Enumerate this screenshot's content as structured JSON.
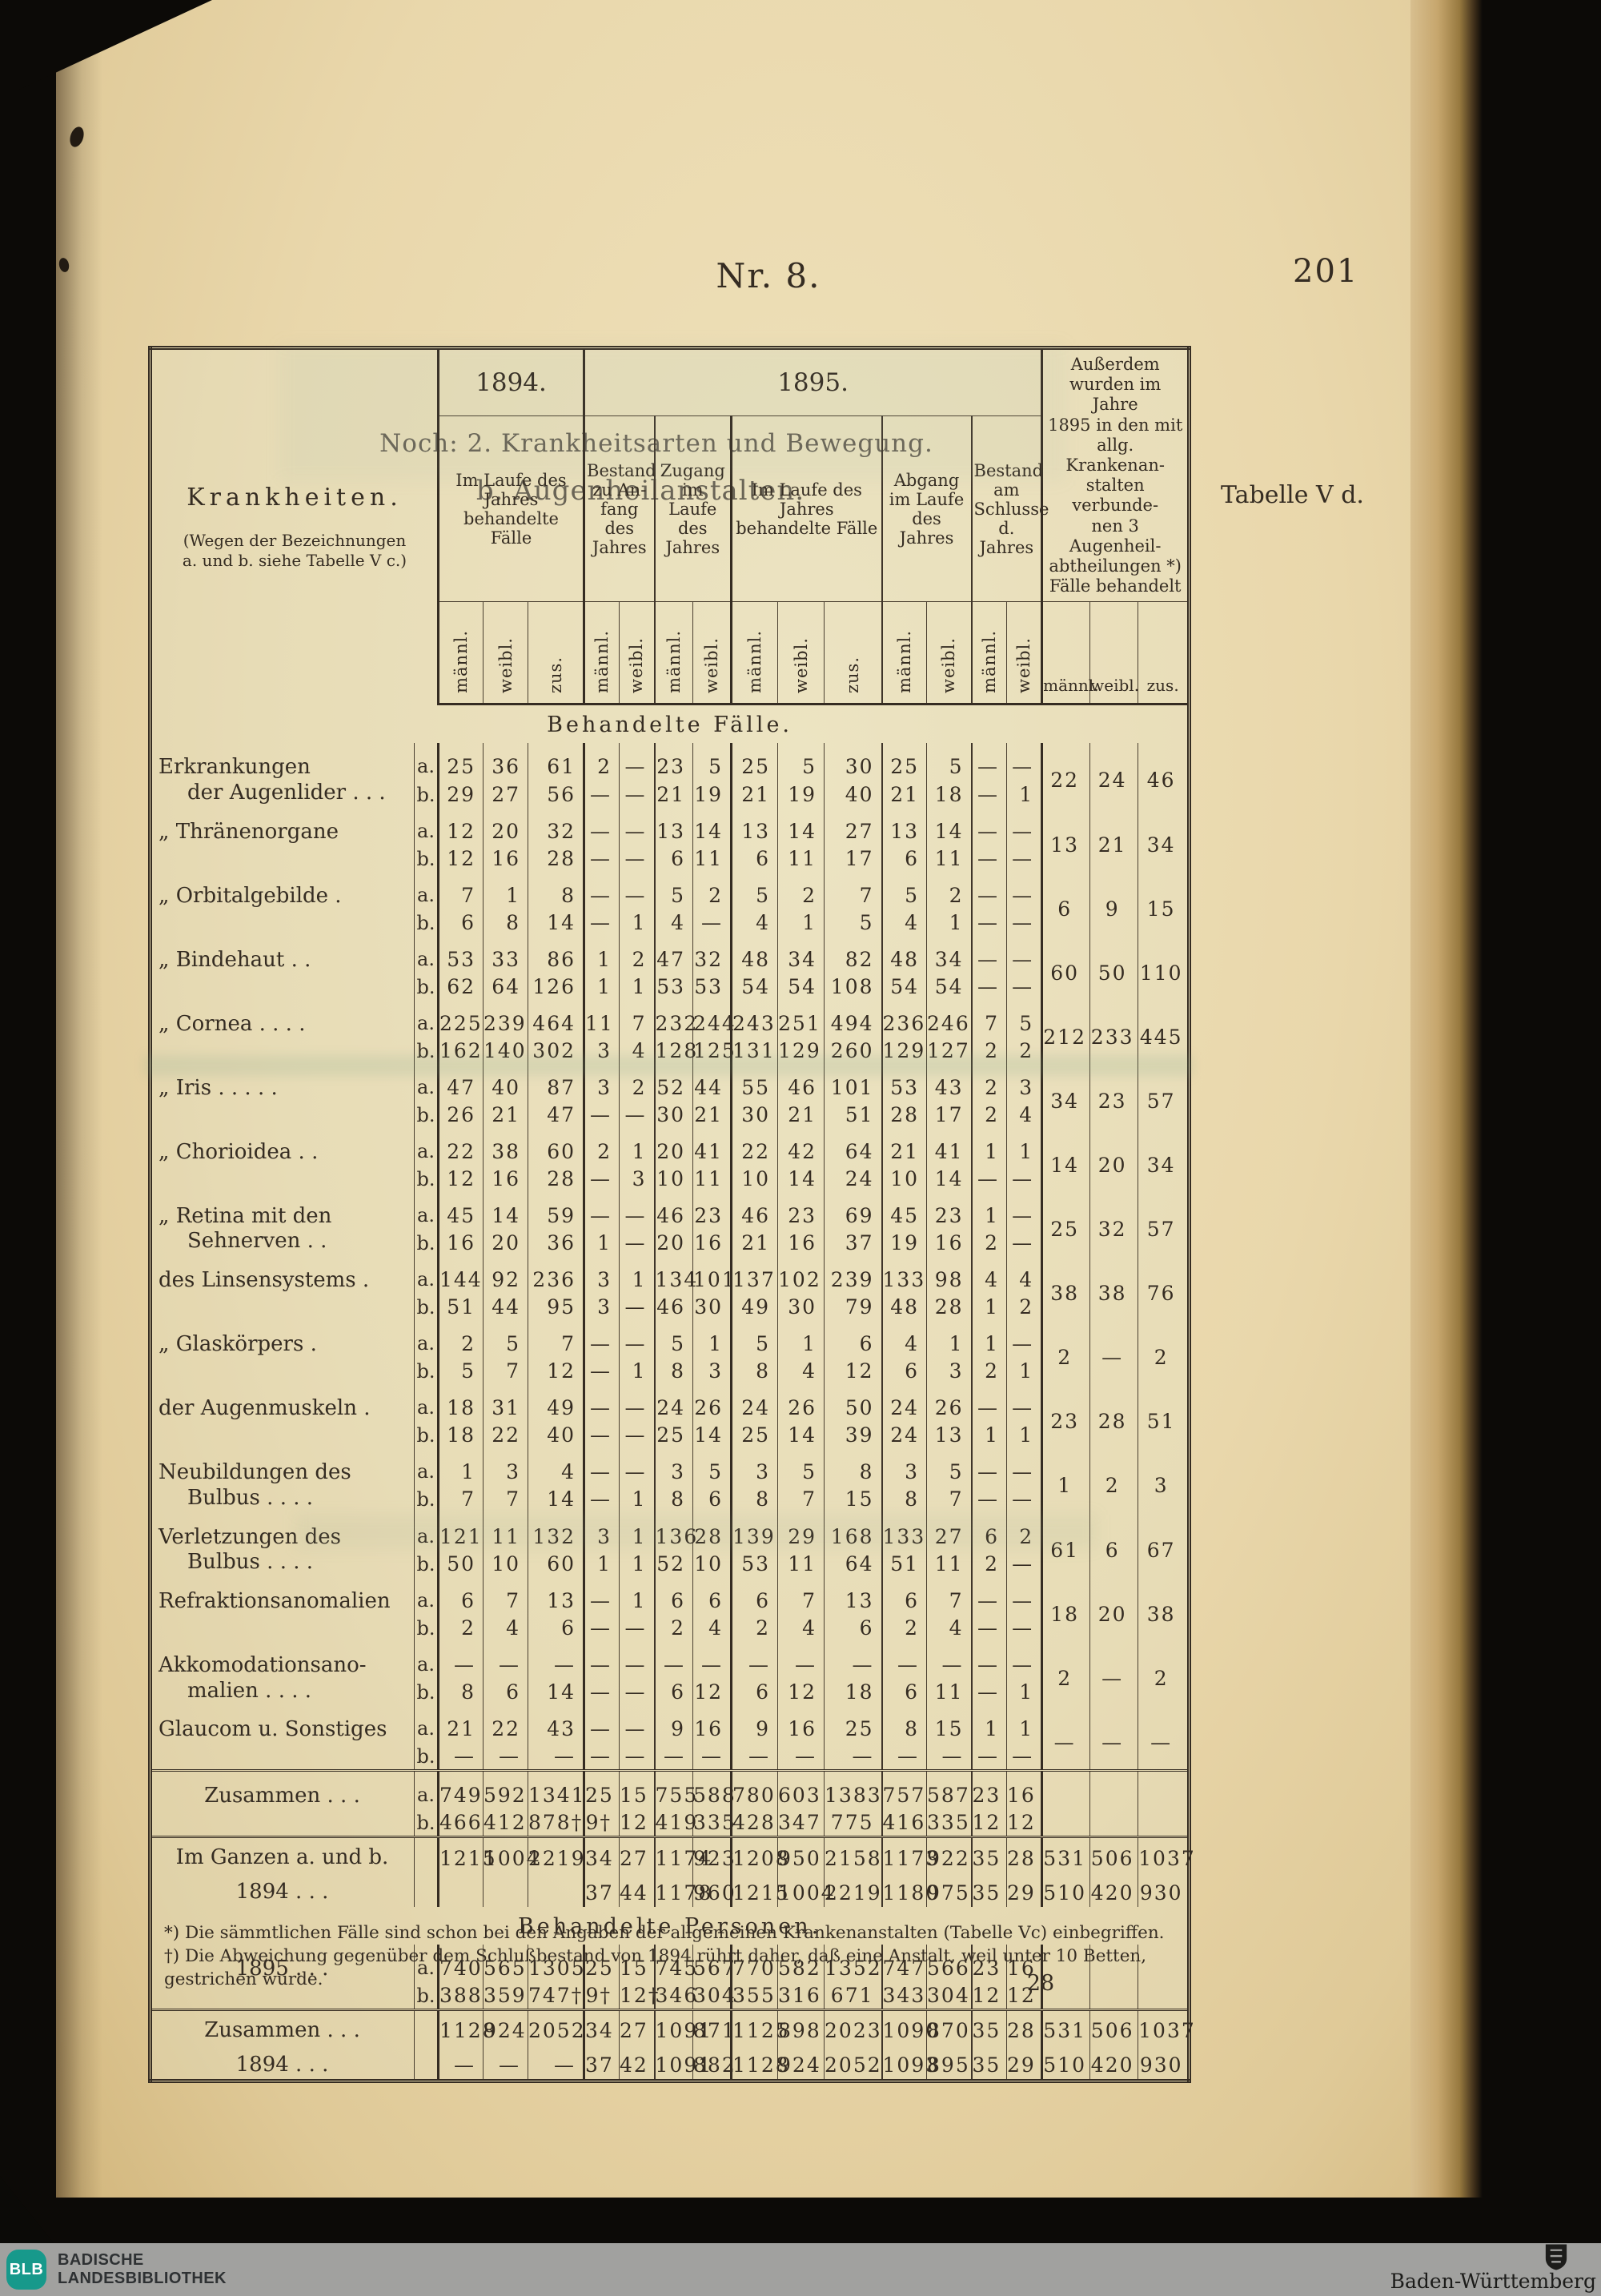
{
  "page": {
    "header_nr": "Nr. 8.",
    "page_number": "201",
    "title_line1": "Noch: 2. Krankheitsarten und Bewegung.",
    "title_line2": "b. Augenheilanstalten.",
    "table_ref": "Tabelle V d.",
    "page_signature": "28"
  },
  "table": {
    "col_headers": {
      "krankheiten_title": "Krankheiten.",
      "krankheiten_sub": "(Wegen der Bezeichnungen\na. und b. siehe Tabelle V c.)",
      "year_1894": "1894.",
      "year_1895": "1895.",
      "g1894_sub": "Im Laufe des\nJahres behandelte\nFälle",
      "bestand_anfang": "Bestand\nzu An-\nfang des\nJahres",
      "zugang": "Zugang\nim Laufe\ndes Jahres",
      "im_laufe": "Im Laufe des\nJahres\nbehandelte Fälle",
      "abgang": "Abgang\nim Laufe\ndes Jahres",
      "bestand_schluss": "Bestand\nam\nSchlusse\nd. Jahres",
      "ausserdem": "Außerdem\nwurden im Jahre\n1895 in den mit\nallg. Krankenan-\nstalten verbunde-\nnen 3 Augenheil-\nabtheilungen *)\nFälle behandelt",
      "maennl": "männl.",
      "weibl": "weibl.",
      "zus": "zus."
    },
    "rows": [
      {
        "type": "section",
        "title": "Behandelte Fälle."
      },
      {
        "type": "pair",
        "label": [
          "Erkrankungen",
          "der Augenlider .    .    ."
        ],
        "a": [
          "25",
          "36",
          "61",
          "2",
          "—",
          "23",
          "5",
          "25",
          "5",
          "30",
          "25",
          "5",
          "—",
          "—"
        ],
        "b": [
          "29",
          "27",
          "56",
          "—",
          "—",
          "21",
          "19",
          "21",
          "19",
          "40",
          "21",
          "18",
          "—",
          "1"
        ],
        "outer": [
          "22",
          "24",
          "46"
        ]
      },
      {
        "type": "pair",
        "label": [
          "„   Thränenorgane"
        ],
        "a": [
          "12",
          "20",
          "32",
          "—",
          "—",
          "13",
          "14",
          "13",
          "14",
          "27",
          "13",
          "14",
          "—",
          "—"
        ],
        "b": [
          "12",
          "16",
          "28",
          "—",
          "—",
          "6",
          "11",
          "6",
          "11",
          "17",
          "6",
          "11",
          "—",
          "—"
        ],
        "outer": [
          "13",
          "21",
          "34"
        ]
      },
      {
        "type": "pair",
        "label": [
          "„   Orbitalgebilde ."
        ],
        "a": [
          "7",
          "1",
          "8",
          "—",
          "—",
          "5",
          "2",
          "5",
          "2",
          "7",
          "5",
          "2",
          "—",
          "—"
        ],
        "b": [
          "6",
          "8",
          "14",
          "—",
          "1",
          "4",
          "—",
          "4",
          "1",
          "5",
          "4",
          "1",
          "—",
          "—"
        ],
        "outer": [
          "6",
          "9",
          "15"
        ]
      },
      {
        "type": "pair",
        "label": [
          "„   Bindehaut   .    ."
        ],
        "a": [
          "53",
          "33",
          "86",
          "1",
          "2",
          "47",
          "32",
          "48",
          "34",
          "82",
          "48",
          "34",
          "—",
          "—"
        ],
        "b": [
          "62",
          "64",
          "126",
          "1",
          "1",
          "53",
          "53",
          "54",
          "54",
          "108",
          "54",
          "54",
          "—",
          "—"
        ],
        "outer": [
          "60",
          "50",
          "110"
        ]
      },
      {
        "type": "pair",
        "label": [
          "„   Cornea .    .    .    ."
        ],
        "a": [
          "225",
          "239",
          "464",
          "11",
          "7",
          "232",
          "244",
          "243",
          "251",
          "494",
          "236",
          "246",
          "7",
          "5"
        ],
        "b": [
          "162",
          "140",
          "302",
          "3",
          "4",
          "128",
          "125",
          "131",
          "129",
          "260",
          "129",
          "127",
          "2",
          "2"
        ],
        "outer": [
          "212",
          "233",
          "445"
        ]
      },
      {
        "type": "pair",
        "label": [
          "„   Iris  .    .    .    .    ."
        ],
        "a": [
          "47",
          "40",
          "87",
          "3",
          "2",
          "52",
          "44",
          "55",
          "46",
          "101",
          "53",
          "43",
          "2",
          "3"
        ],
        "b": [
          "26",
          "21",
          "47",
          "—",
          "—",
          "30",
          "21",
          "30",
          "21",
          "51",
          "28",
          "17",
          "2",
          "4"
        ],
        "outer": [
          "34",
          "23",
          "57"
        ]
      },
      {
        "type": "pair",
        "label": [
          "„   Chorioidea .    ."
        ],
        "a": [
          "22",
          "38",
          "60",
          "2",
          "1",
          "20",
          "41",
          "22",
          "42",
          "64",
          "21",
          "41",
          "1",
          "1"
        ],
        "b": [
          "12",
          "16",
          "28",
          "—",
          "3",
          "10",
          "11",
          "10",
          "14",
          "24",
          "10",
          "14",
          "—",
          "—"
        ],
        "outer": [
          "14",
          "20",
          "34"
        ]
      },
      {
        "type": "pair",
        "label": [
          "„   Retina mit den",
          "Sehnerven   .    ."
        ],
        "a": [
          "45",
          "14",
          "59",
          "—",
          "—",
          "46",
          "23",
          "46",
          "23",
          "69",
          "45",
          "23",
          "1",
          "—"
        ],
        "b": [
          "16",
          "20",
          "36",
          "1",
          "—",
          "20",
          "16",
          "21",
          "16",
          "37",
          "19",
          "16",
          "2",
          "—"
        ],
        "outer": [
          "25",
          "32",
          "57"
        ]
      },
      {
        "type": "pair",
        "label": [
          "des Linsensystems  ."
        ],
        "a": [
          "144",
          "92",
          "236",
          "3",
          "1",
          "134",
          "101",
          "137",
          "102",
          "239",
          "133",
          "98",
          "4",
          "4"
        ],
        "b": [
          "51",
          "44",
          "95",
          "3",
          "—",
          "46",
          "30",
          "49",
          "30",
          "79",
          "48",
          "28",
          "1",
          "2"
        ],
        "outer": [
          "38",
          "38",
          "76"
        ]
      },
      {
        "type": "pair",
        "label": [
          "„   Glaskörpers   ."
        ],
        "a": [
          "2",
          "5",
          "7",
          "—",
          "—",
          "5",
          "1",
          "5",
          "1",
          "6",
          "4",
          "1",
          "1",
          "—"
        ],
        "b": [
          "5",
          "7",
          "12",
          "—",
          "1",
          "8",
          "3",
          "8",
          "4",
          "12",
          "6",
          "3",
          "2",
          "1"
        ],
        "outer": [
          "2",
          "—",
          "2"
        ]
      },
      {
        "type": "pair",
        "label": [
          "der Augenmuskeln ."
        ],
        "a": [
          "18",
          "31",
          "49",
          "—",
          "—",
          "24",
          "26",
          "24",
          "26",
          "50",
          "24",
          "26",
          "—",
          "—"
        ],
        "b": [
          "18",
          "22",
          "40",
          "—",
          "—",
          "25",
          "14",
          "25",
          "14",
          "39",
          "24",
          "13",
          "1",
          "1"
        ],
        "outer": [
          "23",
          "28",
          "51"
        ]
      },
      {
        "type": "pair",
        "label": [
          "Neubildungen    des",
          "Bulbus .    .    .    ."
        ],
        "a": [
          "1",
          "3",
          "4",
          "—",
          "—",
          "3",
          "5",
          "3",
          "5",
          "8",
          "3",
          "5",
          "—",
          "—"
        ],
        "b": [
          "7",
          "7",
          "14",
          "—",
          "1",
          "8",
          "6",
          "8",
          "7",
          "15",
          "8",
          "7",
          "—",
          "—"
        ],
        "outer": [
          "1",
          "2",
          "3"
        ]
      },
      {
        "type": "pair",
        "label": [
          "Verletzungen    des",
          "Bulbus .    .    .    ."
        ],
        "a": [
          "121",
          "11",
          "132",
          "3",
          "1",
          "136",
          "28",
          "139",
          "29",
          "168",
          "133",
          "27",
          "6",
          "2"
        ],
        "b": [
          "50",
          "10",
          "60",
          "1",
          "1",
          "52",
          "10",
          "53",
          "11",
          "64",
          "51",
          "11",
          "2",
          "—"
        ],
        "outer": [
          "61",
          "6",
          "67"
        ]
      },
      {
        "type": "pair",
        "label": [
          "Refraktionsanomalien"
        ],
        "a": [
          "6",
          "7",
          "13",
          "—",
          "1",
          "6",
          "6",
          "6",
          "7",
          "13",
          "6",
          "7",
          "—",
          "—"
        ],
        "b": [
          "2",
          "4",
          "6",
          "—",
          "—",
          "2",
          "4",
          "2",
          "4",
          "6",
          "2",
          "4",
          "—",
          "—"
        ],
        "outer": [
          "18",
          "20",
          "38"
        ]
      },
      {
        "type": "pair",
        "label": [
          "Akkomodationsano-",
          "malien .    .    .    ."
        ],
        "a": [
          "—",
          "—",
          "—",
          "—",
          "—",
          "—",
          "—",
          "—",
          "—",
          "—",
          "—",
          "—",
          "—",
          "—"
        ],
        "b": [
          "8",
          "6",
          "14",
          "—",
          "—",
          "6",
          "12",
          "6",
          "12",
          "18",
          "6",
          "11",
          "—",
          "1"
        ],
        "outer": [
          "2",
          "—",
          "2"
        ]
      },
      {
        "type": "pair",
        "label": [
          "Glaucom u. Sonstiges"
        ],
        "a": [
          "21",
          "22",
          "43",
          "—",
          "—",
          "9",
          "16",
          "9",
          "16",
          "25",
          "8",
          "15",
          "1",
          "1"
        ],
        "b": [
          "—",
          "—",
          "—",
          "—",
          "—",
          "—",
          "—",
          "—",
          "—",
          "—",
          "—",
          "—",
          "—",
          "—"
        ],
        "outer": [
          "—",
          "—",
          "—"
        ]
      },
      {
        "type": "pair",
        "cls": "dbl",
        "center": true,
        "label": [
          "Zusammen .    .    ."
        ],
        "a": [
          "749",
          "592",
          "1341",
          "25",
          "15",
          "755",
          "588",
          "780",
          "603",
          "1383",
          "757",
          "587",
          "23",
          "16"
        ],
        "b": [
          "466",
          "412",
          "878†",
          "9†",
          "12",
          "419",
          "335",
          "428",
          "347",
          "775",
          "416",
          "335",
          "12",
          "12"
        ],
        "outer": null
      },
      {
        "type": "single",
        "cls": "dbl",
        "center": true,
        "label": "Im Ganzen a. und b.",
        "cells": [
          "1215",
          "1004",
          "2219",
          "34",
          "27",
          "1174",
          "923",
          "1208",
          "950",
          "2158",
          "1173",
          "922",
          "35",
          "28"
        ],
        "outer": [
          "531",
          "506",
          "1037"
        ]
      },
      {
        "type": "single",
        "center": true,
        "label": "1894  .    .    .",
        "cells": [
          "",
          "",
          "",
          "37",
          "44",
          "1178",
          "960",
          "1215",
          "1004",
          "2219",
          "1180",
          "975",
          "35",
          "29"
        ],
        "outer": [
          "510",
          "420",
          "930"
        ]
      },
      {
        "type": "section",
        "title": "Behandelte Personen."
      },
      {
        "type": "pair",
        "center": true,
        "label": [
          "1895  .    .    ."
        ],
        "a": [
          "740",
          "565",
          "1305",
          "25",
          "15",
          "745",
          "567",
          "770",
          "582",
          "1352",
          "747",
          "566",
          "23",
          "16"
        ],
        "b": [
          "388",
          "359",
          "747†",
          "9†",
          "12†",
          "346",
          "304",
          "355",
          "316",
          "671",
          "343",
          "304",
          "12",
          "12"
        ],
        "outer": null
      },
      {
        "type": "single",
        "cls": "dbl",
        "center": true,
        "label": "Zusammen  .    .    .",
        "cells": [
          "1128",
          "924",
          "2052",
          "34",
          "27",
          "1091",
          "871",
          "1125",
          "898",
          "2023",
          "1090",
          "870",
          "35",
          "28"
        ],
        "outer": [
          "531",
          "506",
          "1037"
        ]
      },
      {
        "type": "single",
        "center": true,
        "label": "1894  .    .    .",
        "cells": [
          "—",
          "—",
          "—",
          "37",
          "42",
          "1091",
          "882",
          "1128",
          "924",
          "2052",
          "1093",
          "895",
          "35",
          "29"
        ],
        "outer": [
          "510",
          "420",
          "930"
        ]
      }
    ]
  },
  "footnotes": "*) Die sämmtlichen Fälle sind schon bei den Angaben der allgemeinen Krankenanstalten (Tabelle Vc) einbegriffen.\n†) Die Abweichung gegenüber dem Schlußbestand von 1894 rührt daher, daß eine Anstalt, weil unter 10 Betten, gestrichen wurde.",
  "footer": {
    "library_abbr": "BLB",
    "library_line1": "BADISCHE",
    "library_line2": "LANDESBIBLIOTHEK",
    "region": "Baden-Württemberg",
    "logo_color": "#17998b",
    "bar_color": "#a1a19f"
  }
}
